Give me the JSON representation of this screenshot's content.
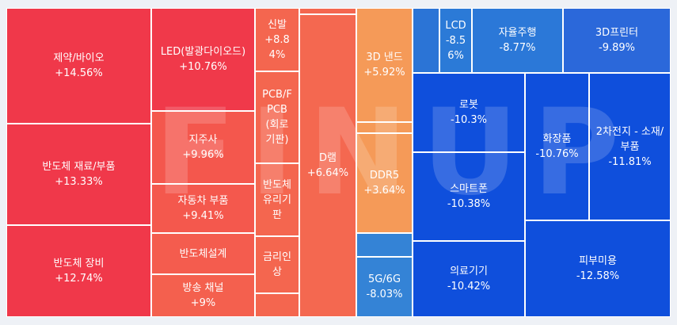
{
  "chart_data": {
    "type": "treemap",
    "watermark": "FINUP",
    "sectors": [
      {
        "name": "제약/바이오",
        "change": "+14.56%",
        "color": "#f0384a"
      },
      {
        "name": "반도체 재료/부품",
        "change": "+13.33%",
        "color": "#f0384a"
      },
      {
        "name": "반도체 장비",
        "change": "+12.74%",
        "color": "#f0384a"
      },
      {
        "name": "LED(발광다이오드)",
        "change": "+10.76%",
        "color": "#f0394a"
      },
      {
        "name": "지주사",
        "change": "+9.96%",
        "color": "#f4574d"
      },
      {
        "name": "자동차 부품",
        "change": "+9.41%",
        "color": "#f4584d"
      },
      {
        "name": "반도체설계",
        "change": "",
        "color": "#f45c4e"
      },
      {
        "name": "방송 채널",
        "change": "+9%",
        "color": "#f4604e"
      },
      {
        "name": "신발",
        "change": "+8.8\n4%",
        "color": "#f4664f"
      },
      {
        "name": "PCB/F\nPCB\n(회로\n기판)",
        "change": "",
        "color": "#f4664f"
      },
      {
        "name": "반도체\n유리기\n판",
        "change": "",
        "color": "#f4664f"
      },
      {
        "name": "금리인\n상",
        "change": "",
        "color": "#f4664f"
      },
      {
        "name": "",
        "change": "",
        "color": "#f4664f"
      },
      {
        "name": "",
        "change": "",
        "color": "#f4664f"
      },
      {
        "name": "D램",
        "change": "+6.64%",
        "color": "#f46850"
      },
      {
        "name": "3D 낸드",
        "change": "+5.92%",
        "color": "#f59a58"
      },
      {
        "name": "",
        "change": "",
        "color": "#f59a58"
      },
      {
        "name": "DDR5",
        "change": "+3.64%",
        "color": "#f59a58"
      },
      {
        "name": "",
        "change": "",
        "color": "#3483d6"
      },
      {
        "name": "5G/6G",
        "change": "-8.03%",
        "color": "#3483d6"
      },
      {
        "name": "",
        "change": "",
        "color": "#2b74d6"
      },
      {
        "name": "LCD",
        "change": "-8.5\n6%",
        "color": "#2b7ad7"
      },
      {
        "name": "자율주행",
        "change": "-8.77%",
        "color": "#2b78d8"
      },
      {
        "name": "3D프린터",
        "change": "-9.89%",
        "color": "#2b68da"
      },
      {
        "name": "로봇",
        "change": "-10.3%",
        "color": "#0f4fdc"
      },
      {
        "name": "스마트폰",
        "change": "-10.38%",
        "color": "#0f4fdc"
      },
      {
        "name": "의료기기",
        "change": "-10.42%",
        "color": "#0f4fdc"
      },
      {
        "name": "화장품",
        "change": "-10.76%",
        "color": "#0f4fdc"
      },
      {
        "name": "2차전지 - 소재/\n부품",
        "change": "-11.81%",
        "color": "#0f4fdc"
      },
      {
        "name": "피부미용",
        "change": "-12.58%",
        "color": "#0f4fdc"
      }
    ]
  }
}
